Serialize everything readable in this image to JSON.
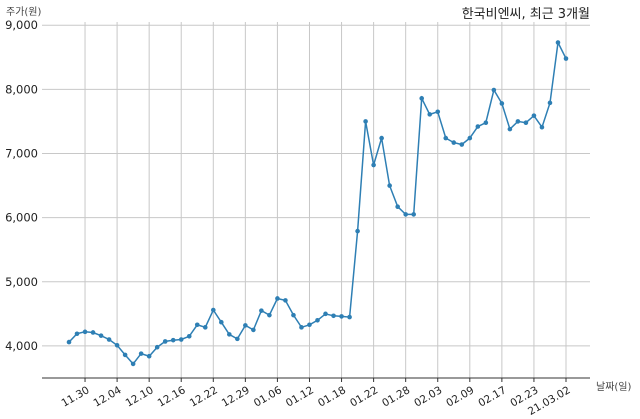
{
  "chart_data": {
    "type": "line",
    "title": "한국비엔씨, 최근 3개월",
    "ylabel": "주가(원)",
    "xlabel": "날짜(일)",
    "ylim": [
      3500,
      9050
    ],
    "yticks": [
      4000,
      5000,
      6000,
      7000,
      8000,
      9000
    ],
    "ytick_labels": [
      "4,000",
      "5,000",
      "6,000",
      "7,000",
      "8,000",
      "9,000"
    ],
    "grid": true,
    "line_color": "#2e7fb4",
    "xtick_labels": [
      {
        "index": 2,
        "label": "11.30"
      },
      {
        "index": 6,
        "label": "12.04"
      },
      {
        "index": 10,
        "label": "12.10"
      },
      {
        "index": 14,
        "label": "12.16"
      },
      {
        "index": 18,
        "label": "12.22"
      },
      {
        "index": 22,
        "label": "12.29"
      },
      {
        "index": 26,
        "label": "01.06"
      },
      {
        "index": 30,
        "label": "01.12"
      },
      {
        "index": 34,
        "label": "01.18"
      },
      {
        "index": 38,
        "label": "01.22"
      },
      {
        "index": 42,
        "label": "01.28"
      },
      {
        "index": 46,
        "label": "02.03"
      },
      {
        "index": 50,
        "label": "02.09"
      },
      {
        "index": 54,
        "label": "02.17"
      },
      {
        "index": 58,
        "label": "02.23"
      },
      {
        "index": 62,
        "label": "21.03.02"
      }
    ],
    "values": [
      4060,
      4190,
      4220,
      4210,
      4160,
      4100,
      4010,
      3860,
      3720,
      3880,
      3840,
      3980,
      4070,
      4090,
      4100,
      4150,
      4330,
      4290,
      4560,
      4370,
      4180,
      4110,
      4320,
      4250,
      4550,
      4480,
      4740,
      4710,
      4480,
      4290,
      4330,
      4400,
      4500,
      4470,
      4460,
      4450,
      5790,
      7500,
      6820,
      7240,
      6500,
      6170,
      6050,
      6050,
      7860,
      7610,
      7650,
      7240,
      7170,
      7140,
      7240,
      7420,
      7480,
      7990,
      7780,
      7380,
      7500,
      7480,
      7590,
      7410,
      7790,
      8730,
      8480
    ]
  }
}
